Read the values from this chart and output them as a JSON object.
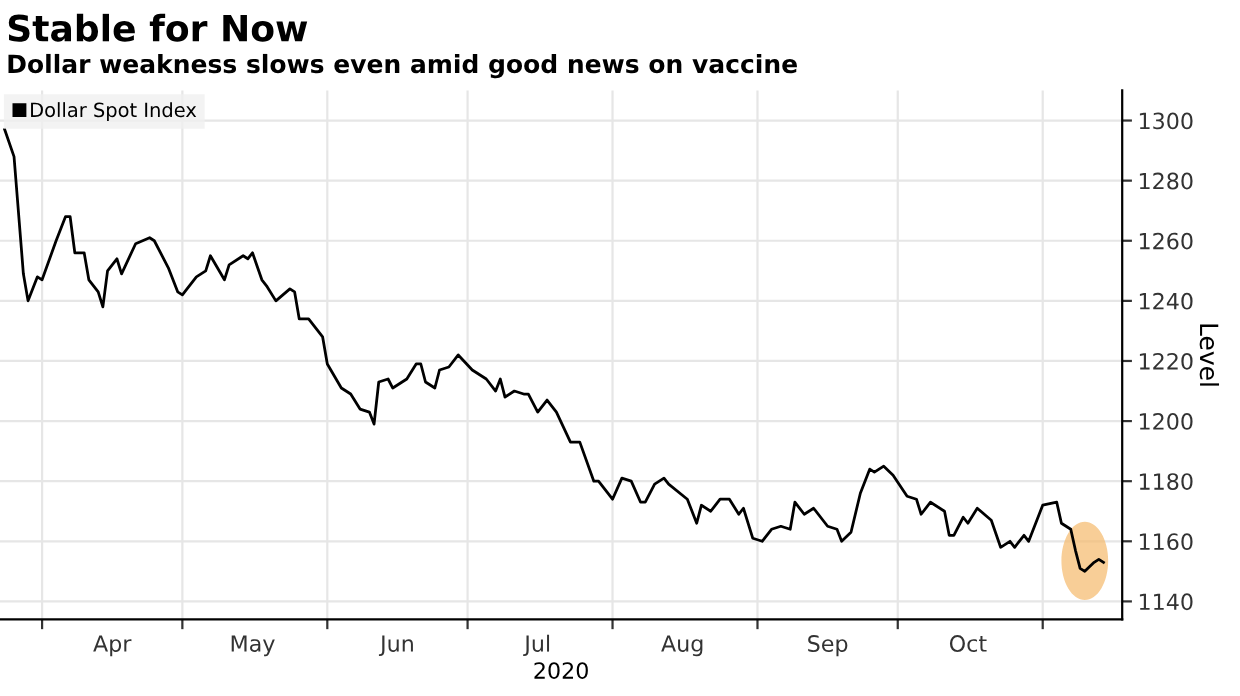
{
  "chart_data": {
    "type": "line",
    "title": "Stable for Now",
    "subtitle": "Dollar weakness slows even amid good news on vaccine",
    "xlabel": "2020",
    "ylabel": "Level",
    "x": [
      "2020-03-24",
      "2020-03-26",
      "2020-03-28",
      "2020-03-29",
      "2020-03-31",
      "2020-04-01",
      "2020-04-04",
      "2020-04-06",
      "2020-04-07",
      "2020-04-08",
      "2020-04-10",
      "2020-04-11",
      "2020-04-13",
      "2020-04-14",
      "2020-04-15",
      "2020-04-17",
      "2020-04-18",
      "2020-04-21",
      "2020-04-24",
      "2020-04-25",
      "2020-04-28",
      "2020-04-30",
      "2020-05-01",
      "2020-05-04",
      "2020-05-06",
      "2020-05-07",
      "2020-05-10",
      "2020-05-11",
      "2020-05-14",
      "2020-05-15",
      "2020-05-16",
      "2020-05-18",
      "2020-05-19",
      "2020-05-21",
      "2020-05-24",
      "2020-05-25",
      "2020-05-26",
      "2020-05-28",
      "2020-05-31",
      "2020-06-01",
      "2020-06-04",
      "2020-06-06",
      "2020-06-08",
      "2020-06-10",
      "2020-06-11",
      "2020-06-12",
      "2020-06-14",
      "2020-06-15",
      "2020-06-17",
      "2020-06-18",
      "2020-06-20",
      "2020-06-21",
      "2020-06-22",
      "2020-06-24",
      "2020-06-25",
      "2020-06-27",
      "2020-06-29",
      "2020-07-02",
      "2020-07-05",
      "2020-07-07",
      "2020-07-08",
      "2020-07-09",
      "2020-07-11",
      "2020-07-13",
      "2020-07-14",
      "2020-07-16",
      "2020-07-18",
      "2020-07-20",
      "2020-07-23",
      "2020-07-25",
      "2020-07-28",
      "2020-07-29",
      "2020-08-01",
      "2020-08-03",
      "2020-08-05",
      "2020-08-07",
      "2020-08-08",
      "2020-08-10",
      "2020-08-12",
      "2020-08-13",
      "2020-08-17",
      "2020-08-19",
      "2020-08-20",
      "2020-08-22",
      "2020-08-24",
      "2020-08-26",
      "2020-08-28",
      "2020-08-29",
      "2020-08-31",
      "2020-09-02",
      "2020-09-04",
      "2020-09-06",
      "2020-09-08",
      "2020-09-09",
      "2020-09-11",
      "2020-09-13",
      "2020-09-16",
      "2020-09-18",
      "2020-09-19",
      "2020-09-21",
      "2020-09-23",
      "2020-09-25",
      "2020-09-26",
      "2020-09-28",
      "2020-09-30",
      "2020-10-03",
      "2020-10-05",
      "2020-10-06",
      "2020-10-08",
      "2020-10-11",
      "2020-10-12",
      "2020-10-13",
      "2020-10-15",
      "2020-10-16",
      "2020-10-18",
      "2020-10-21",
      "2020-10-23",
      "2020-10-25",
      "2020-10-26",
      "2020-10-28",
      "2020-10-29",
      "2020-11-01",
      "2020-11-04",
      "2020-11-05",
      "2020-11-07",
      "2020-11-08",
      "2020-11-09",
      "2020-11-10",
      "2020-11-12",
      "2020-11-13",
      "2020-11-14"
    ],
    "series": [
      {
        "name": "Dollar Spot Index",
        "color": "#000000",
        "values": [
          1297,
          1288,
          1249,
          1240,
          1248,
          1247,
          1260,
          1268,
          1268,
          1256,
          1256,
          1247,
          1243,
          1238,
          1250,
          1254,
          1249,
          1259,
          1261,
          1260,
          1251,
          1243,
          1242,
          1248,
          1250,
          1255,
          1247,
          1252,
          1255,
          1254,
          1256,
          1247,
          1245,
          1240,
          1244,
          1243,
          1234,
          1234,
          1228,
          1219,
          1211,
          1209,
          1204,
          1203,
          1199,
          1213,
          1214,
          1211,
          1213,
          1214,
          1219,
          1219,
          1213,
          1211,
          1217,
          1218,
          1222,
          1217,
          1214,
          1210,
          1214,
          1208,
          1210,
          1209,
          1209,
          1203,
          1207,
          1203,
          1193,
          1193,
          1180,
          1180,
          1174,
          1181,
          1180,
          1173,
          1173,
          1179,
          1181,
          1179,
          1174,
          1166,
          1172,
          1170,
          1174,
          1174,
          1169,
          1171,
          1161,
          1160,
          1164,
          1165,
          1164,
          1173,
          1169,
          1171,
          1165,
          1164,
          1160,
          1163,
          1176,
          1184,
          1183,
          1185,
          1182,
          1175,
          1174,
          1169,
          1173,
          1170,
          1162,
          1162,
          1168,
          1166,
          1171,
          1167,
          1158,
          1160,
          1158,
          1162,
          1160,
          1172,
          1173,
          1166,
          1164,
          1157,
          1151,
          1150,
          1153,
          1154,
          1153
        ]
      }
    ],
    "xlim": [
      "2020-03-23",
      "2020-11-18"
    ],
    "xticks": [
      {
        "value": "2020-04-01",
        "label": null
      },
      {
        "value": "2020-04-16",
        "label": "Apr"
      },
      {
        "value": "2020-05-01",
        "label": null
      },
      {
        "value": "2020-05-16",
        "label": "May"
      },
      {
        "value": "2020-06-01",
        "label": null
      },
      {
        "value": "2020-06-16",
        "label": "Jun"
      },
      {
        "value": "2020-07-01",
        "label": null
      },
      {
        "value": "2020-07-16",
        "label": "Jul"
      },
      {
        "value": "2020-08-01",
        "label": null
      },
      {
        "value": "2020-08-16",
        "label": "Aug"
      },
      {
        "value": "2020-09-01",
        "label": null
      },
      {
        "value": "2020-09-16",
        "label": "Sep"
      },
      {
        "value": "2020-10-01",
        "label": null
      },
      {
        "value": "2020-10-16",
        "label": "Oct"
      },
      {
        "value": "2020-11-01",
        "label": null
      }
    ],
    "ylim": [
      1134,
      1310
    ],
    "yticks": [
      1140,
      1160,
      1180,
      1200,
      1220,
      1240,
      1260,
      1280,
      1300
    ],
    "grid": true,
    "legend": "top left",
    "line_style": "solid"
  }
}
